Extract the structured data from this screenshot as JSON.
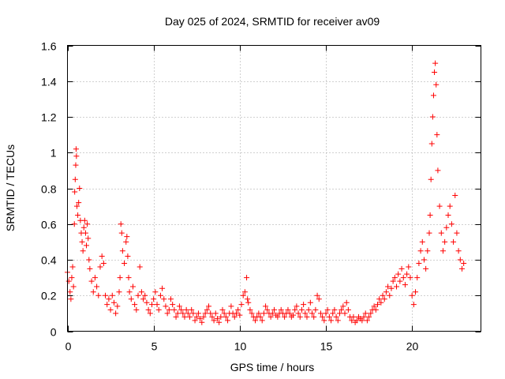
{
  "chart_data": {
    "type": "scatter",
    "title": "Day 025 of 2024, SRMTID for receiver av09",
    "xlabel": "GPS time / hours",
    "ylabel": "SRMTID / TECUs",
    "xlim": [
      0,
      24
    ],
    "ylim": [
      0,
      1.6
    ],
    "xticks": [
      0,
      5,
      10,
      15,
      20
    ],
    "xtick_labels": [
      "0",
      "5",
      "10",
      "15",
      "20"
    ],
    "yticks": [
      0,
      0.2,
      0.4,
      0.6,
      0.8,
      1,
      1.2,
      1.4,
      1.6
    ],
    "ytick_labels": [
      "0",
      "0.2",
      "0.4",
      "0.6",
      "0.8",
      "1",
      "1.2",
      "1.4",
      "1.6"
    ],
    "grid": true,
    "marker": "plus",
    "series": [
      {
        "name": "SRMTID",
        "color": "#ff0000",
        "points": [
          [
            0.0,
            0.33
          ],
          [
            0.08,
            0.28
          ],
          [
            0.15,
            0.22
          ],
          [
            0.2,
            0.18
          ],
          [
            0.25,
            0.3
          ],
          [
            0.3,
            0.36
          ],
          [
            0.35,
            0.25
          ],
          [
            0.4,
            0.6
          ],
          [
            0.42,
            0.78
          ],
          [
            0.45,
            0.85
          ],
          [
            0.48,
            0.93
          ],
          [
            0.5,
            1.02
          ],
          [
            0.52,
            0.98
          ],
          [
            0.55,
            0.7
          ],
          [
            0.6,
            0.65
          ],
          [
            0.65,
            0.72
          ],
          [
            0.7,
            0.8
          ],
          [
            0.75,
            0.62
          ],
          [
            0.8,
            0.55
          ],
          [
            0.85,
            0.5
          ],
          [
            0.9,
            0.45
          ],
          [
            0.95,
            0.58
          ],
          [
            1.0,
            0.62
          ],
          [
            1.05,
            0.55
          ],
          [
            1.1,
            0.48
          ],
          [
            1.15,
            0.6
          ],
          [
            1.2,
            0.52
          ],
          [
            1.25,
            0.4
          ],
          [
            1.3,
            0.35
          ],
          [
            1.4,
            0.28
          ],
          [
            1.5,
            0.22
          ],
          [
            1.6,
            0.3
          ],
          [
            1.7,
            0.25
          ],
          [
            1.8,
            0.2
          ],
          [
            1.9,
            0.36
          ],
          [
            2.0,
            0.42
          ],
          [
            2.1,
            0.38
          ],
          [
            2.2,
            0.2
          ],
          [
            2.3,
            0.15
          ],
          [
            2.4,
            0.18
          ],
          [
            2.5,
            0.12
          ],
          [
            2.6,
            0.2
          ],
          [
            2.7,
            0.16
          ],
          [
            2.8,
            0.1
          ],
          [
            2.9,
            0.14
          ],
          [
            3.0,
            0.22
          ],
          [
            3.05,
            0.3
          ],
          [
            3.1,
            0.6
          ],
          [
            3.15,
            0.55
          ],
          [
            3.2,
            0.45
          ],
          [
            3.3,
            0.38
          ],
          [
            3.4,
            0.5
          ],
          [
            3.45,
            0.53
          ],
          [
            3.5,
            0.42
          ],
          [
            3.55,
            0.3
          ],
          [
            3.6,
            0.22
          ],
          [
            3.7,
            0.18
          ],
          [
            3.8,
            0.25
          ],
          [
            3.9,
            0.15
          ],
          [
            4.0,
            0.12
          ],
          [
            4.1,
            0.2
          ],
          [
            4.2,
            0.36
          ],
          [
            4.3,
            0.22
          ],
          [
            4.4,
            0.18
          ],
          [
            4.5,
            0.2
          ],
          [
            4.6,
            0.16
          ],
          [
            4.7,
            0.12
          ],
          [
            4.8,
            0.1
          ],
          [
            4.9,
            0.15
          ],
          [
            5.0,
            0.18
          ],
          [
            5.1,
            0.22
          ],
          [
            5.2,
            0.15
          ],
          [
            5.3,
            0.12
          ],
          [
            5.4,
            0.2
          ],
          [
            5.5,
            0.24
          ],
          [
            5.6,
            0.18
          ],
          [
            5.7,
            0.14
          ],
          [
            5.8,
            0.1
          ],
          [
            5.9,
            0.12
          ],
          [
            6.0,
            0.18
          ],
          [
            6.1,
            0.15
          ],
          [
            6.2,
            0.12
          ],
          [
            6.3,
            0.08
          ],
          [
            6.4,
            0.1
          ],
          [
            6.5,
            0.14
          ],
          [
            6.6,
            0.12
          ],
          [
            6.7,
            0.1
          ],
          [
            6.8,
            0.08
          ],
          [
            6.9,
            0.12
          ],
          [
            7.0,
            0.1
          ],
          [
            7.1,
            0.08
          ],
          [
            7.2,
            0.12
          ],
          [
            7.3,
            0.1
          ],
          [
            7.4,
            0.06
          ],
          [
            7.5,
            0.08
          ],
          [
            7.6,
            0.1
          ],
          [
            7.7,
            0.07
          ],
          [
            7.8,
            0.05
          ],
          [
            7.9,
            0.08
          ],
          [
            8.0,
            0.1
          ],
          [
            8.1,
            0.12
          ],
          [
            8.2,
            0.14
          ],
          [
            8.3,
            0.1
          ],
          [
            8.4,
            0.08
          ],
          [
            8.5,
            0.06
          ],
          [
            8.6,
            0.1
          ],
          [
            8.7,
            0.07
          ],
          [
            8.8,
            0.05
          ],
          [
            8.9,
            0.08
          ],
          [
            9.0,
            0.12
          ],
          [
            9.1,
            0.1
          ],
          [
            9.2,
            0.08
          ],
          [
            9.3,
            0.06
          ],
          [
            9.4,
            0.1
          ],
          [
            9.5,
            0.14
          ],
          [
            9.6,
            0.1
          ],
          [
            9.7,
            0.08
          ],
          [
            9.8,
            0.1
          ],
          [
            9.9,
            0.12
          ],
          [
            10.0,
            0.09
          ],
          [
            10.1,
            0.15
          ],
          [
            10.2,
            0.2
          ],
          [
            10.3,
            0.22
          ],
          [
            10.4,
            0.3
          ],
          [
            10.45,
            0.18
          ],
          [
            10.5,
            0.16
          ],
          [
            10.6,
            0.12
          ],
          [
            10.7,
            0.1
          ],
          [
            10.8,
            0.08
          ],
          [
            10.9,
            0.06
          ],
          [
            11.0,
            0.08
          ],
          [
            11.1,
            0.1
          ],
          [
            11.2,
            0.08
          ],
          [
            11.3,
            0.06
          ],
          [
            11.4,
            0.1
          ],
          [
            11.5,
            0.14
          ],
          [
            11.6,
            0.12
          ],
          [
            11.7,
            0.1
          ],
          [
            11.8,
            0.08
          ],
          [
            11.9,
            0.1
          ],
          [
            12.0,
            0.12
          ],
          [
            12.1,
            0.09
          ],
          [
            12.2,
            0.08
          ],
          [
            12.3,
            0.1
          ],
          [
            12.4,
            0.12
          ],
          [
            12.5,
            0.1
          ],
          [
            12.6,
            0.08
          ],
          [
            12.7,
            0.1
          ],
          [
            12.8,
            0.12
          ],
          [
            12.9,
            0.1
          ],
          [
            13.0,
            0.08
          ],
          [
            13.1,
            0.09
          ],
          [
            13.2,
            0.12
          ],
          [
            13.3,
            0.14
          ],
          [
            13.4,
            0.1
          ],
          [
            13.5,
            0.08
          ],
          [
            13.6,
            0.12
          ],
          [
            13.7,
            0.15
          ],
          [
            13.8,
            0.1
          ],
          [
            13.9,
            0.08
          ],
          [
            14.0,
            0.12
          ],
          [
            14.1,
            0.16
          ],
          [
            14.2,
            0.1
          ],
          [
            14.3,
            0.08
          ],
          [
            14.4,
            0.12
          ],
          [
            14.5,
            0.2
          ],
          [
            14.6,
            0.18
          ],
          [
            14.7,
            0.1
          ],
          [
            14.8,
            0.08
          ],
          [
            14.9,
            0.06
          ],
          [
            15.0,
            0.1
          ],
          [
            15.1,
            0.12
          ],
          [
            15.2,
            0.08
          ],
          [
            15.3,
            0.06
          ],
          [
            15.4,
            0.1
          ],
          [
            15.5,
            0.12
          ],
          [
            15.6,
            0.08
          ],
          [
            15.7,
            0.06
          ],
          [
            15.8,
            0.1
          ],
          [
            15.9,
            0.12
          ],
          [
            16.0,
            0.14
          ],
          [
            16.1,
            0.1
          ],
          [
            16.2,
            0.16
          ],
          [
            16.3,
            0.12
          ],
          [
            16.4,
            0.08
          ],
          [
            16.5,
            0.06
          ],
          [
            16.6,
            0.08
          ],
          [
            16.7,
            0.05
          ],
          [
            16.8,
            0.06
          ],
          [
            16.9,
            0.08
          ],
          [
            17.0,
            0.07
          ],
          [
            17.1,
            0.06
          ],
          [
            17.2,
            0.08
          ],
          [
            17.3,
            0.1
          ],
          [
            17.4,
            0.06
          ],
          [
            17.5,
            0.08
          ],
          [
            17.6,
            0.1
          ],
          [
            17.7,
            0.12
          ],
          [
            17.8,
            0.14
          ],
          [
            17.9,
            0.12
          ],
          [
            18.0,
            0.15
          ],
          [
            18.1,
            0.18
          ],
          [
            18.2,
            0.16
          ],
          [
            18.3,
            0.2
          ],
          [
            18.4,
            0.18
          ],
          [
            18.5,
            0.22
          ],
          [
            18.6,
            0.25
          ],
          [
            18.7,
            0.2
          ],
          [
            18.8,
            0.24
          ],
          [
            18.9,
            0.28
          ],
          [
            19.0,
            0.3
          ],
          [
            19.1,
            0.25
          ],
          [
            19.2,
            0.32
          ],
          [
            19.3,
            0.28
          ],
          [
            19.4,
            0.35
          ],
          [
            19.5,
            0.3
          ],
          [
            19.6,
            0.26
          ],
          [
            19.7,
            0.32
          ],
          [
            19.8,
            0.36
          ],
          [
            19.9,
            0.3
          ],
          [
            20.0,
            0.2
          ],
          [
            20.1,
            0.15
          ],
          [
            20.2,
            0.22
          ],
          [
            20.3,
            0.3
          ],
          [
            20.4,
            0.38
          ],
          [
            20.5,
            0.45
          ],
          [
            20.6,
            0.5
          ],
          [
            20.7,
            0.4
          ],
          [
            20.8,
            0.35
          ],
          [
            20.9,
            0.45
          ],
          [
            21.0,
            0.55
          ],
          [
            21.05,
            0.65
          ],
          [
            21.1,
            0.85
          ],
          [
            21.15,
            1.05
          ],
          [
            21.2,
            1.2
          ],
          [
            21.25,
            1.32
          ],
          [
            21.3,
            1.45
          ],
          [
            21.35,
            1.5
          ],
          [
            21.4,
            1.38
          ],
          [
            21.45,
            1.1
          ],
          [
            21.5,
            0.9
          ],
          [
            21.6,
            0.7
          ],
          [
            21.7,
            0.55
          ],
          [
            21.8,
            0.45
          ],
          [
            21.9,
            0.5
          ],
          [
            22.0,
            0.58
          ],
          [
            22.1,
            0.65
          ],
          [
            22.2,
            0.7
          ],
          [
            22.3,
            0.6
          ],
          [
            22.4,
            0.5
          ],
          [
            22.5,
            0.76
          ],
          [
            22.6,
            0.55
          ],
          [
            22.7,
            0.45
          ],
          [
            22.8,
            0.4
          ],
          [
            22.9,
            0.35
          ],
          [
            23.0,
            0.38
          ]
        ]
      }
    ]
  }
}
